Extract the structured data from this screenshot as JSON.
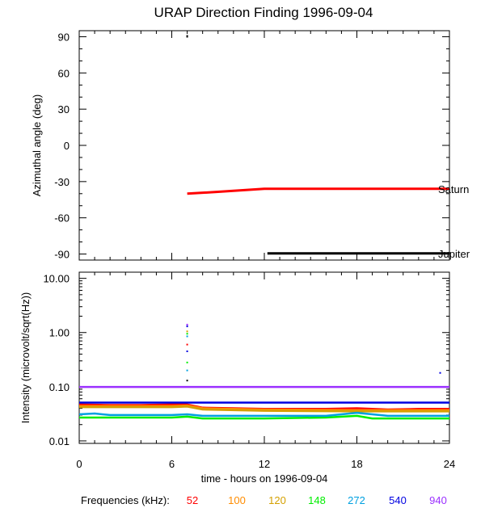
{
  "title": "URAP Direction Finding  1996-09-04",
  "frequencies_label": "Frequencies (kHz):",
  "chart_data": [
    {
      "type": "line",
      "title": "URAP Direction Finding  1996-09-04",
      "ylabel": "Azimuthal angle (deg)",
      "xlim": [
        0,
        24
      ],
      "ylim": [
        -95,
        95
      ],
      "yticks": [
        "90",
        "60",
        "30",
        "0",
        "-30",
        "-60",
        "-90"
      ],
      "series": [
        {
          "name": "Saturn",
          "color": "#ff0000",
          "x": [
            7.0,
            9.0,
            12.0,
            24.0
          ],
          "y": [
            -40,
            -38.5,
            -36,
            -36
          ]
        },
        {
          "name": "Jupiter",
          "color": "#000000",
          "x": [
            12.2,
            24.0
          ],
          "y": [
            -89.5,
            -89.5
          ]
        }
      ],
      "points": [
        {
          "x": 7.0,
          "y": 90,
          "color": "#000000"
        }
      ]
    },
    {
      "type": "line",
      "xlabel": "time - hours on 1996-09-04",
      "ylabel": "Intensity (microvolt/sqrt(Hz))",
      "yscale": "log",
      "xlim": [
        0,
        24
      ],
      "ylim": [
        0.009,
        13
      ],
      "xticks": [
        "0",
        "6",
        "12",
        "18",
        "24"
      ],
      "yticks": [
        "10.00",
        "1.00",
        "0.10",
        "0.01"
      ],
      "series": [
        {
          "name": "52",
          "color": "#ff0000",
          "x": [
            0,
            2,
            4,
            6,
            7,
            8,
            10,
            12,
            14,
            16,
            18,
            20,
            22,
            24
          ],
          "y": [
            0.047,
            0.046,
            0.046,
            0.047,
            0.047,
            0.041,
            0.04,
            0.039,
            0.039,
            0.039,
            0.04,
            0.038,
            0.039,
            0.039
          ]
        },
        {
          "name": "100",
          "color": "#ff8c00",
          "x": [
            0,
            6,
            7,
            8,
            12,
            18,
            24
          ],
          "y": [
            0.044,
            0.044,
            0.045,
            0.04,
            0.038,
            0.037,
            0.037
          ]
        },
        {
          "name": "120",
          "color": "#d4a000",
          "x": [
            0,
            6,
            7,
            8,
            12,
            18,
            24
          ],
          "y": [
            0.042,
            0.042,
            0.043,
            0.038,
            0.036,
            0.035,
            0.035
          ]
        },
        {
          "name": "148",
          "color": "#00ee00",
          "x": [
            0,
            2,
            4,
            6,
            7,
            8,
            12,
            16,
            18,
            19,
            24
          ],
          "y": [
            0.027,
            0.027,
            0.027,
            0.027,
            0.028,
            0.026,
            0.026,
            0.027,
            0.029,
            0.026,
            0.026
          ]
        },
        {
          "name": "272",
          "color": "#00a0e0",
          "x": [
            0,
            1,
            2,
            4,
            6,
            7,
            8,
            12,
            16,
            18,
            20,
            24
          ],
          "y": [
            0.031,
            0.032,
            0.03,
            0.03,
            0.03,
            0.031,
            0.029,
            0.029,
            0.029,
            0.033,
            0.029,
            0.029
          ]
        },
        {
          "name": "540",
          "color": "#0000e0",
          "x": [
            0,
            6,
            12,
            18,
            24
          ],
          "y": [
            0.051,
            0.051,
            0.051,
            0.051,
            0.051
          ]
        },
        {
          "name": "940",
          "color": "#9b30ff",
          "x": [
            0,
            6,
            12,
            18,
            24
          ],
          "y": [
            0.099,
            0.099,
            0.099,
            0.099,
            0.099
          ]
        }
      ],
      "points": [
        {
          "x": 7.0,
          "y": 1.4,
          "color": "#9b30ff"
        },
        {
          "x": 7.0,
          "y": 1.3,
          "color": "#0000e0"
        },
        {
          "x": 7.0,
          "y": 1.05,
          "color": "#d4a000"
        },
        {
          "x": 7.0,
          "y": 0.95,
          "color": "#00ee00"
        },
        {
          "x": 7.0,
          "y": 0.85,
          "color": "#00a0e0"
        },
        {
          "x": 7.0,
          "y": 0.6,
          "color": "#ff0000"
        },
        {
          "x": 7.0,
          "y": 0.45,
          "color": "#0000e0"
        },
        {
          "x": 7.0,
          "y": 0.28,
          "color": "#00ee00"
        },
        {
          "x": 7.0,
          "y": 0.2,
          "color": "#00a0e0"
        },
        {
          "x": 7.0,
          "y": 0.13,
          "color": "#000000"
        },
        {
          "x": 23.4,
          "y": 0.18,
          "color": "#0000e0"
        }
      ]
    }
  ]
}
